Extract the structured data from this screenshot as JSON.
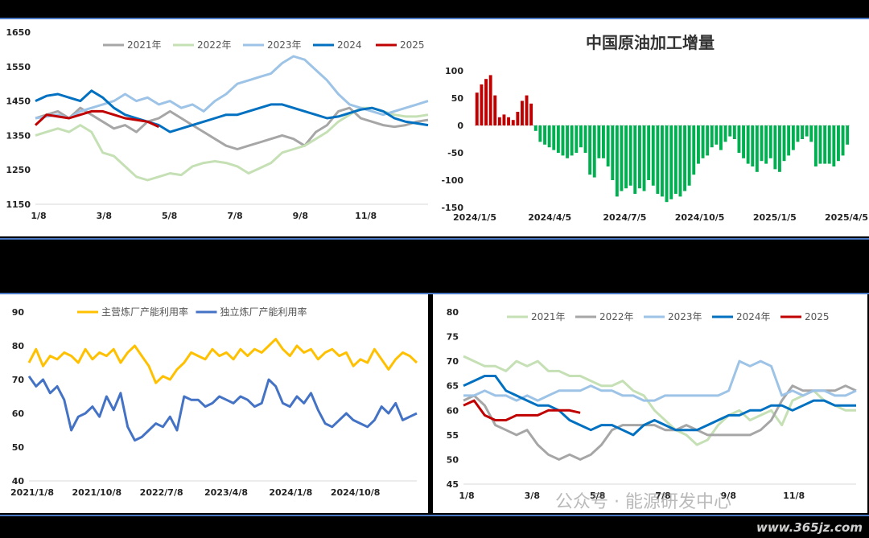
{
  "charts": [
    {
      "type": "line",
      "categories_labels": [
        "1/8",
        "3/8",
        "5/8",
        "7/8",
        "9/8",
        "11/8"
      ],
      "ylim": [
        1150,
        1650
      ],
      "yticks": [
        1150,
        1250,
        1350,
        1450,
        1550,
        1650
      ],
      "series": [
        {
          "name": "2021年",
          "color": "#a6a6a6",
          "values": [
            1400,
            1410,
            1420,
            1400,
            1430,
            1410,
            1390,
            1370,
            1380,
            1360,
            1390,
            1400,
            1420,
            1400,
            1380,
            1360,
            1340,
            1320,
            1310,
            1320,
            1330,
            1340,
            1350,
            1340,
            1320,
            1360,
            1380,
            1420,
            1430,
            1400,
            1390,
            1380,
            1375,
            1380,
            1390,
            1395
          ]
        },
        {
          "name": "2022年",
          "color": "#c5e0b4",
          "values": [
            1350,
            1360,
            1370,
            1360,
            1380,
            1360,
            1300,
            1290,
            1260,
            1230,
            1220,
            1230,
            1240,
            1235,
            1260,
            1270,
            1275,
            1270,
            1260,
            1240,
            1255,
            1270,
            1300,
            1310,
            1320,
            1340,
            1360,
            1390,
            1410,
            1430,
            1430,
            1420,
            1410,
            1405,
            1405,
            1410
          ]
        },
        {
          "name": "2023年",
          "color": "#9dc3e6",
          "values": [
            1400,
            1405,
            1410,
            1400,
            1420,
            1430,
            1440,
            1450,
            1470,
            1450,
            1460,
            1440,
            1450,
            1430,
            1440,
            1420,
            1450,
            1470,
            1500,
            1510,
            1520,
            1530,
            1560,
            1580,
            1570,
            1540,
            1510,
            1470,
            1440,
            1430,
            1420,
            1410,
            1420,
            1430,
            1440,
            1450
          ]
        },
        {
          "name": "2024",
          "color": "#0070c0",
          "values": [
            1450,
            1465,
            1470,
            1460,
            1450,
            1480,
            1460,
            1430,
            1410,
            1400,
            1390,
            1380,
            1360,
            1370,
            1380,
            1390,
            1400,
            1410,
            1410,
            1420,
            1430,
            1440,
            1440,
            1430,
            1420,
            1410,
            1400,
            1405,
            1415,
            1425,
            1430,
            1420,
            1400,
            1390,
            1385,
            1380
          ]
        },
        {
          "name": "2025",
          "color": "#c00000",
          "values": [
            1380,
            1410,
            1405,
            1400,
            1410,
            1420,
            1420,
            1410,
            1400,
            1395,
            1390,
            1375
          ]
        }
      ]
    },
    {
      "type": "bar",
      "title": "中国原油加工增量",
      "xticks": [
        "2024/1/5",
        "2024/4/5",
        "2024/7/5",
        "2024/10/5",
        "2025/1/5",
        "2025/4/5"
      ],
      "ylim": [
        -150,
        100
      ],
      "yticks": [
        100,
        50,
        0,
        -50,
        -100,
        -150
      ],
      "pos_color": "#c00000",
      "neg_color": "#00b050",
      "values": [
        60,
        75,
        85,
        92,
        55,
        15,
        20,
        15,
        10,
        25,
        45,
        55,
        40,
        -10,
        -30,
        -35,
        -40,
        -45,
        -50,
        -55,
        -60,
        -55,
        -50,
        -40,
        -50,
        -90,
        -95,
        -60,
        -60,
        -75,
        -100,
        -130,
        -120,
        -115,
        -110,
        -125,
        -115,
        -120,
        -100,
        -110,
        -125,
        -130,
        -140,
        -135,
        -125,
        -130,
        -120,
        -110,
        -90,
        -70,
        -60,
        -55,
        -40,
        -35,
        -45,
        -30,
        -20,
        -25,
        -50,
        -60,
        -70,
        -75,
        -85,
        -65,
        -70,
        -60,
        -80,
        -85,
        -65,
        -55,
        -45,
        -30,
        -25,
        -20,
        -30,
        -75,
        -70,
        -70,
        -70,
        -75,
        -65,
        -55,
        -35
      ]
    },
    {
      "type": "line",
      "xticks": [
        "2021/1/8",
        "2021/10/8",
        "2022/7/8",
        "2023/4/8",
        "2024/1/8",
        "2024/10/8"
      ],
      "ylim": [
        40,
        90
      ],
      "yticks": [
        40,
        50,
        60,
        70,
        80,
        90
      ],
      "series": [
        {
          "name": "主营炼厂产能利用率",
          "color": "#ffc000",
          "values": [
            75,
            79,
            74,
            77,
            76,
            78,
            77,
            75,
            79,
            76,
            78,
            77,
            79,
            75,
            78,
            80,
            77,
            74,
            69,
            71,
            70,
            73,
            75,
            78,
            77,
            76,
            79,
            77,
            78,
            76,
            79,
            77,
            79,
            78,
            80,
            82,
            79,
            77,
            80,
            78,
            79,
            76,
            78,
            79,
            77,
            78,
            74,
            76,
            75,
            79,
            76,
            73,
            76,
            78,
            77,
            75
          ]
        },
        {
          "name": "独立炼厂产能利用率",
          "color": "#4472c4",
          "values": [
            71,
            68,
            70,
            66,
            68,
            64,
            55,
            59,
            60,
            62,
            59,
            65,
            61,
            66,
            56,
            52,
            53,
            55,
            57,
            56,
            59,
            55,
            65,
            64,
            64,
            62,
            63,
            65,
            64,
            63,
            65,
            64,
            62,
            63,
            70,
            68,
            63,
            62,
            65,
            63,
            66,
            61,
            57,
            56,
            58,
            60,
            58,
            57,
            56,
            58,
            62,
            60,
            63,
            58,
            59,
            60
          ]
        }
      ]
    },
    {
      "type": "line",
      "xticks": [
        "1/8",
        "3/8",
        "5/8",
        "7/8",
        "9/8",
        "11/8"
      ],
      "ylim": [
        45,
        80
      ],
      "yticks": [
        45,
        50,
        55,
        60,
        65,
        70,
        75,
        80
      ],
      "series": [
        {
          "name": "2021年",
          "color": "#c5e0b4",
          "values": [
            71,
            70,
            69,
            69,
            68,
            70,
            69,
            70,
            68,
            68,
            67,
            67,
            66,
            65,
            65,
            66,
            64,
            63,
            60,
            58,
            56,
            55,
            53,
            54,
            57,
            59,
            60,
            58,
            59,
            60,
            57,
            62,
            63,
            64,
            62,
            61,
            60,
            60
          ]
        },
        {
          "name": "2022年",
          "color": "#a6a6a6",
          "values": [
            62,
            63,
            61,
            57,
            56,
            55,
            56,
            53,
            51,
            50,
            51,
            50,
            51,
            53,
            56,
            57,
            57,
            57,
            57,
            56,
            56,
            57,
            56,
            55,
            55,
            55,
            55,
            55,
            56,
            58,
            62,
            65,
            64,
            64,
            64,
            64,
            65,
            64
          ]
        },
        {
          "name": "2023年",
          "color": "#9dc3e6",
          "values": [
            63,
            63,
            64,
            63,
            63,
            62,
            63,
            62,
            63,
            64,
            64,
            64,
            65,
            64,
            64,
            63,
            63,
            62,
            62,
            63,
            63,
            63,
            63,
            63,
            63,
            64,
            70,
            69,
            70,
            69,
            63,
            64,
            63,
            64,
            64,
            63,
            63,
            64
          ]
        },
        {
          "name": "2024年",
          "color": "#0070c0",
          "values": [
            65,
            66,
            67,
            67,
            64,
            63,
            62,
            61,
            61,
            60,
            58,
            57,
            56,
            57,
            57,
            56,
            55,
            57,
            58,
            57,
            56,
            56,
            56,
            57,
            58,
            59,
            59,
            60,
            60,
            61,
            61,
            60,
            61,
            62,
            62,
            61,
            61,
            61
          ]
        },
        {
          "name": "2025",
          "color": "#c00000",
          "values": [
            61,
            62,
            59,
            58,
            58,
            59,
            59,
            59,
            60,
            60,
            60,
            59.5
          ]
        }
      ]
    }
  ],
  "watermark_text": "公众号 · 能源研发中心",
  "site_text": "www.365jz.com"
}
